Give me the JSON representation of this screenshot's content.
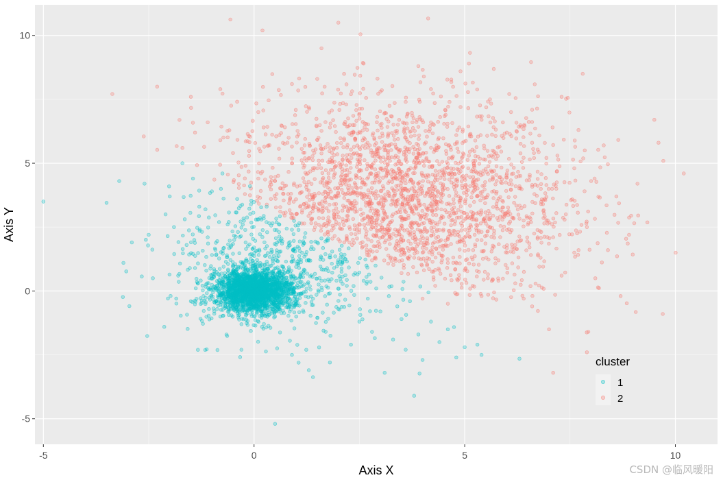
{
  "chart_data": {
    "type": "scatter",
    "title": "",
    "xlabel": "Axis X",
    "ylabel": "Axis Y",
    "xlim": [
      -5.2,
      11.0
    ],
    "ylim": [
      -6.0,
      11.2
    ],
    "x_ticks": [
      -5,
      0,
      5,
      10
    ],
    "y_ticks": [
      -5,
      0,
      5,
      10
    ],
    "x_tick_labels": [
      "-5",
      "0",
      "5",
      "10"
    ],
    "y_tick_labels": [
      "-5",
      "0",
      "5",
      "10"
    ],
    "grid": true,
    "legend": {
      "title": "cluster",
      "position": "bottom-right inside"
    },
    "series": [
      {
        "name": "1",
        "color": "#00BFC4",
        "points": [
          [
            -5.0,
            3.5
          ],
          [
            -3.5,
            3.45
          ],
          [
            -3.2,
            4.3
          ],
          [
            -3.1,
            1.1
          ],
          [
            -2.9,
            1.9
          ],
          [
            -2.6,
            4.2
          ],
          [
            -2.5,
            2.2
          ],
          [
            -2.4,
            0.5
          ],
          [
            -2.1,
            3.0
          ],
          [
            -2.0,
            3.7
          ],
          [
            -1.9,
            2.5
          ],
          [
            -1.8,
            0.6
          ],
          [
            -1.7,
            5.0
          ],
          [
            -1.6,
            1.8
          ],
          [
            -1.5,
            -0.4
          ],
          [
            -1.45,
            4.4
          ],
          [
            -1.4,
            0.9
          ],
          [
            -1.3,
            3.3
          ],
          [
            -1.2,
            -0.2
          ],
          [
            -1.1,
            2.1
          ],
          [
            -1.0,
            3.9
          ],
          [
            -0.9,
            1.4
          ],
          [
            -0.8,
            -1.0
          ],
          [
            -0.75,
            4.6
          ],
          [
            -0.6,
            2.7
          ],
          [
            -0.5,
            0.8
          ],
          [
            -0.4,
            3.6
          ],
          [
            -0.3,
            -1.3
          ],
          [
            -0.2,
            1.9
          ],
          [
            -0.1,
            4.1
          ],
          [
            0.0,
            0.9
          ],
          [
            0.1,
            2.8
          ],
          [
            0.2,
            -0.9
          ],
          [
            0.3,
            3.3
          ],
          [
            0.4,
            1.5
          ],
          [
            0.5,
            0.2
          ],
          [
            0.6,
            2.6
          ],
          [
            0.7,
            -0.5
          ],
          [
            0.8,
            1.7
          ],
          [
            0.9,
            2.4
          ],
          [
            1.0,
            -1.0
          ],
          [
            1.1,
            0.6
          ],
          [
            1.2,
            2.1
          ],
          [
            1.3,
            1.2
          ],
          [
            1.4,
            -0.3
          ],
          [
            1.5,
            1.9
          ],
          [
            1.6,
            0.4
          ],
          [
            1.7,
            -1.6
          ],
          [
            1.8,
            1.4
          ],
          [
            1.9,
            0.9
          ],
          [
            2.0,
            -0.7
          ],
          [
            2.1,
            1.1
          ],
          [
            2.2,
            0.2
          ],
          [
            2.3,
            -2.1
          ],
          [
            2.4,
            0.7
          ],
          [
            2.5,
            -1.2
          ],
          [
            2.6,
            0.4
          ],
          [
            2.7,
            -0.3
          ],
          [
            2.8,
            -1.6
          ],
          [
            2.9,
            0.1
          ],
          [
            3.0,
            -0.8
          ],
          [
            3.1,
            -3.2
          ],
          [
            3.2,
            -0.2
          ],
          [
            3.3,
            -1.9
          ],
          [
            3.4,
            -0.6
          ],
          [
            3.5,
            -1.1
          ],
          [
            3.6,
            -2.3
          ],
          [
            3.7,
            -0.4
          ],
          [
            3.8,
            -4.1
          ],
          [
            3.9,
            -1.7
          ],
          [
            4.0,
            -2.7
          ],
          [
            4.2,
            -1.2
          ],
          [
            4.4,
            -2.0
          ],
          [
            4.6,
            -1.5
          ],
          [
            4.8,
            -2.6
          ],
          [
            5.0,
            -2.2
          ],
          [
            5.3,
            -2.1
          ],
          [
            5.4,
            -2.5
          ],
          [
            6.3,
            -2.65
          ],
          [
            0.5,
            -5.2
          ],
          [
            1.8,
            -2.8
          ],
          [
            1.3,
            -3.1
          ],
          [
            0.9,
            -2.5
          ],
          [
            -0.3,
            -2.3
          ],
          [
            -0.4,
            0.0
          ],
          [
            -0.3,
            0.2
          ],
          [
            -0.2,
            -0.3
          ],
          [
            -0.1,
            0.4
          ],
          [
            0.0,
            0.0
          ],
          [
            0.1,
            -0.2
          ],
          [
            0.2,
            0.3
          ],
          [
            0.3,
            -0.1
          ],
          [
            0.4,
            0.5
          ],
          [
            0.5,
            -0.4
          ],
          [
            -0.6,
            0.3
          ],
          [
            -0.5,
            -0.5
          ],
          [
            0.6,
            0.1
          ],
          [
            -0.7,
            -0.2
          ],
          [
            0.7,
            0.4
          ],
          [
            -0.2,
            0.8
          ],
          [
            0.2,
            -0.8
          ],
          [
            0.0,
            0.6
          ],
          [
            -0.4,
            0.6
          ],
          [
            0.4,
            -0.6
          ],
          [
            -0.8,
            0.1
          ],
          [
            0.8,
            -0.1
          ],
          [
            -0.1,
            -0.7
          ],
          [
            0.1,
            0.7
          ],
          [
            -0.3,
            -0.6
          ],
          [
            0.3,
            0.6
          ],
          [
            -0.9,
            -0.4
          ],
          [
            0.9,
            0.3
          ],
          [
            -0.6,
            -0.8
          ],
          [
            0.6,
            0.8
          ],
          [
            -1.0,
            0.5
          ],
          [
            1.0,
            -0.5
          ],
          [
            0.0,
            -1.0
          ],
          [
            0.0,
            1.0
          ],
          [
            -0.5,
            1.0
          ],
          [
            0.5,
            -1.0
          ]
        ]
      },
      {
        "name": "2",
        "color": "#F8766D",
        "points": [
          [
            0.2,
            10.2
          ],
          [
            2.0,
            10.5
          ],
          [
            1.6,
            9.5
          ],
          [
            2.6,
            8.9
          ],
          [
            3.9,
            8.8
          ],
          [
            4.9,
            8.6
          ],
          [
            5.1,
            8.9
          ],
          [
            7.8,
            8.5
          ],
          [
            -2.3,
            8.0
          ],
          [
            -1.5,
            7.6
          ],
          [
            -0.8,
            7.9
          ],
          [
            0.1,
            7.0
          ],
          [
            0.9,
            8.1
          ],
          [
            1.5,
            8.3
          ],
          [
            2.3,
            7.7
          ],
          [
            3.0,
            7.8
          ],
          [
            3.6,
            7.4
          ],
          [
            4.2,
            7.9
          ],
          [
            4.9,
            7.2
          ],
          [
            5.6,
            7.5
          ],
          [
            6.1,
            7.0
          ],
          [
            7.3,
            7.6
          ],
          [
            7.7,
            6.3
          ],
          [
            8.3,
            5.7
          ],
          [
            9.5,
            6.7
          ],
          [
            9.6,
            5.8
          ],
          [
            10.2,
            4.6
          ],
          [
            9.1,
            4.2
          ],
          [
            8.6,
            3.7
          ],
          [
            8.9,
            2.2
          ],
          [
            8.4,
            1.6
          ],
          [
            8.1,
            0.5
          ],
          [
            8.7,
            -0.2
          ],
          [
            9.7,
            -0.9
          ],
          [
            7.9,
            -2.4
          ],
          [
            7.1,
            -3.2
          ],
          [
            7.0,
            -1.5
          ],
          [
            6.6,
            -0.6
          ],
          [
            6.2,
            0.3
          ],
          [
            5.8,
            1.2
          ],
          [
            5.4,
            -0.2
          ],
          [
            5.0,
            0.8
          ],
          [
            4.6,
            -0.5
          ],
          [
            4.3,
            0.2
          ],
          [
            4.0,
            -0.3
          ],
          [
            3.8,
            1.3
          ],
          [
            3.5,
            0.7
          ],
          [
            3.1,
            1.9
          ],
          [
            2.8,
            1.2
          ],
          [
            2.5,
            2.4
          ],
          [
            2.2,
            2.0
          ],
          [
            1.9,
            2.9
          ],
          [
            1.6,
            2.5
          ],
          [
            1.3,
            3.3
          ],
          [
            1.0,
            3.0
          ],
          [
            0.7,
            3.8
          ],
          [
            0.4,
            3.6
          ],
          [
            0.1,
            4.4
          ],
          [
            -0.2,
            4.9
          ],
          [
            -0.5,
            5.4
          ],
          [
            -0.8,
            5.9
          ],
          [
            -1.1,
            6.6
          ],
          [
            -1.4,
            6.2
          ],
          [
            -1.7,
            5.6
          ],
          [
            0.6,
            6.1
          ],
          [
            1.2,
            5.7
          ],
          [
            1.8,
            6.4
          ],
          [
            2.4,
            5.9
          ],
          [
            3.0,
            6.5
          ],
          [
            3.6,
            6.0
          ],
          [
            4.2,
            6.6
          ],
          [
            4.8,
            6.1
          ],
          [
            5.4,
            6.7
          ],
          [
            6.0,
            6.2
          ],
          [
            6.6,
            5.8
          ],
          [
            7.2,
            5.3
          ],
          [
            7.6,
            4.8
          ],
          [
            8.0,
            4.3
          ],
          [
            1.5,
            4.8
          ],
          [
            2.1,
            4.2
          ],
          [
            2.7,
            4.9
          ],
          [
            3.3,
            4.4
          ],
          [
            3.9,
            5.1
          ],
          [
            4.5,
            4.6
          ],
          [
            5.1,
            5.3
          ],
          [
            5.7,
            4.7
          ],
          [
            6.3,
            4.1
          ],
          [
            6.9,
            3.6
          ],
          [
            7.4,
            3.0
          ],
          [
            7.9,
            2.5
          ],
          [
            2.3,
            3.4
          ],
          [
            2.9,
            3.9
          ],
          [
            3.5,
            3.3
          ],
          [
            4.1,
            3.8
          ],
          [
            4.7,
            3.2
          ],
          [
            5.3,
            3.7
          ],
          [
            5.9,
            3.1
          ],
          [
            6.5,
            2.6
          ],
          [
            7.1,
            2.1
          ],
          [
            7.6,
            1.5
          ],
          [
            3.2,
            2.6
          ],
          [
            3.8,
            2.2
          ],
          [
            4.4,
            2.7
          ],
          [
            5.0,
            2.1
          ],
          [
            5.6,
            2.5
          ],
          [
            6.2,
            1.8
          ],
          [
            6.8,
            1.3
          ],
          [
            7.3,
            0.6
          ],
          [
            4.0,
            1.5
          ],
          [
            4.6,
            1.1
          ],
          [
            5.2,
            1.6
          ],
          [
            5.8,
            0.4
          ],
          [
            6.4,
            -0.3
          ],
          [
            2.7,
            2.9
          ],
          [
            3.3,
            3.0
          ],
          [
            4.2,
            3.4
          ],
          [
            3.6,
            4.0
          ],
          [
            2.6,
            3.7
          ],
          [
            4.8,
            4.1
          ],
          [
            3.0,
            5.2
          ]
        ]
      }
    ]
  },
  "watermark": "CSDN @临风暖阳"
}
